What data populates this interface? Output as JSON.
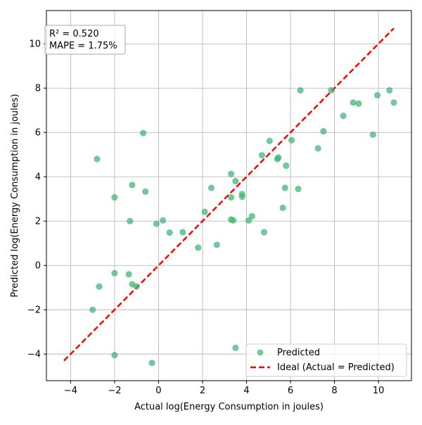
{
  "chart_data": {
    "type": "scatter",
    "title": "",
    "xlabel": "Actual log(Energy Consumption in joules)",
    "ylabel": "Predicted log(Energy Consumption in joules)",
    "xlim": [
      -5.1,
      11.5
    ],
    "ylim": [
      -5.2,
      11.5
    ],
    "xticks": [
      -4,
      -2,
      0,
      2,
      4,
      6,
      8,
      10
    ],
    "yticks": [
      -4,
      -2,
      0,
      2,
      4,
      6,
      8,
      10
    ],
    "grid": true,
    "annotation_lines": [
      "R² = 0.520",
      "MAPE = 1.75%"
    ],
    "legend": {
      "position": "lower-right",
      "entries": [
        "Predicted",
        "Ideal (Actual = Predicted)"
      ]
    },
    "series": [
      {
        "name": "Predicted",
        "kind": "scatter",
        "color": "#3cb371",
        "points": [
          [
            -3.0,
            -2.0
          ],
          [
            -2.7,
            -0.95
          ],
          [
            -2.8,
            4.8
          ],
          [
            -2.0,
            3.07
          ],
          [
            -2.0,
            -0.35
          ],
          [
            -2.0,
            -4.05
          ],
          [
            -1.3,
            2.0
          ],
          [
            -1.35,
            -0.4
          ],
          [
            -1.2,
            3.63
          ],
          [
            -1.2,
            -0.85
          ],
          [
            -1.0,
            -0.95
          ],
          [
            -0.7,
            5.97
          ],
          [
            -0.6,
            3.33
          ],
          [
            -0.3,
            -4.4
          ],
          [
            -0.1,
            1.88
          ],
          [
            0.2,
            2.03
          ],
          [
            0.5,
            1.48
          ],
          [
            1.1,
            1.5
          ],
          [
            1.8,
            0.8
          ],
          [
            2.1,
            2.42
          ],
          [
            2.4,
            3.5
          ],
          [
            2.65,
            0.93
          ],
          [
            3.3,
            4.13
          ],
          [
            3.3,
            2.07
          ],
          [
            3.3,
            3.07
          ],
          [
            3.4,
            2.03
          ],
          [
            3.5,
            3.8
          ],
          [
            3.5,
            -3.72
          ],
          [
            3.8,
            3.22
          ],
          [
            3.8,
            3.1
          ],
          [
            4.1,
            2.03
          ],
          [
            4.25,
            2.22
          ],
          [
            4.7,
            4.97
          ],
          [
            4.8,
            1.5
          ],
          [
            5.05,
            5.62
          ],
          [
            5.4,
            4.8
          ],
          [
            5.45,
            4.87
          ],
          [
            5.65,
            2.6
          ],
          [
            5.75,
            3.5
          ],
          [
            5.8,
            4.5
          ],
          [
            6.05,
            5.65
          ],
          [
            6.35,
            3.45
          ],
          [
            6.45,
            7.9
          ],
          [
            7.25,
            5.28
          ],
          [
            7.5,
            6.05
          ],
          [
            7.85,
            7.9
          ],
          [
            8.4,
            6.75
          ],
          [
            8.85,
            7.35
          ],
          [
            9.1,
            7.3
          ],
          [
            9.75,
            5.9
          ],
          [
            9.95,
            7.68
          ],
          [
            10.5,
            7.9
          ],
          [
            10.7,
            7.35
          ]
        ]
      },
      {
        "name": "Ideal (Actual = Predicted)",
        "kind": "line",
        "color": "#ff0000",
        "dashed": true,
        "x": [
          -4.3,
          10.7
        ],
        "y": [
          -4.3,
          10.7
        ]
      }
    ]
  }
}
